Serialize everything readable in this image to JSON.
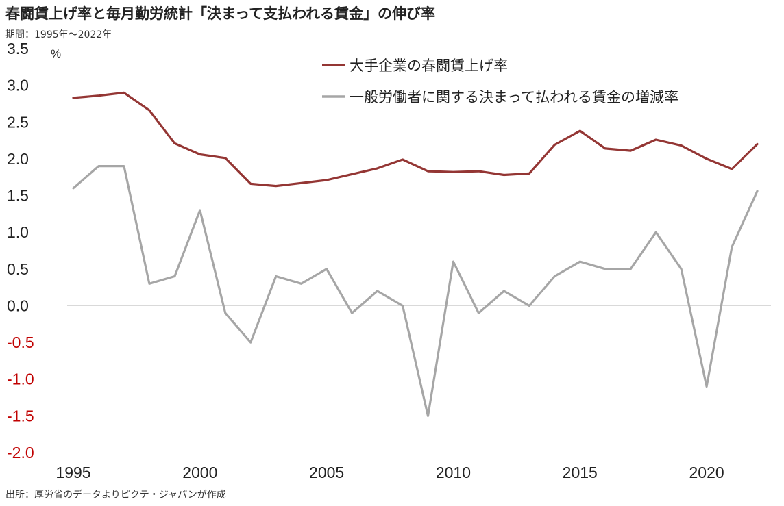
{
  "title": "春闘賃上げ率と毎月勤労統計「決まって支払われる賃金」の伸び率",
  "subtitle": "期間：1995年～2022年",
  "source": "出所：厚労省のデータよりピクテ・ジャパンが作成",
  "chart_data": {
    "type": "line",
    "unit": "%",
    "x": [
      1995,
      1996,
      1997,
      1998,
      1999,
      2000,
      2001,
      2002,
      2003,
      2004,
      2005,
      2006,
      2007,
      2008,
      2009,
      2010,
      2011,
      2012,
      2013,
      2014,
      2015,
      2016,
      2017,
      2018,
      2019,
      2020,
      2021,
      2022
    ],
    "xticks": [
      "1995",
      "2000",
      "2005",
      "2010",
      "2015",
      "2020"
    ],
    "xtick_values": [
      1995,
      2000,
      2005,
      2010,
      2015,
      2020
    ],
    "yticks": [
      "3.5",
      "3.0",
      "2.5",
      "2.0",
      "1.5",
      "1.0",
      "0.5",
      "0.0",
      "-0.5",
      "-1.0",
      "-1.5",
      "-2.0"
    ],
    "ytick_values": [
      3.5,
      3.0,
      2.5,
      2.0,
      1.5,
      1.0,
      0.5,
      0.0,
      -0.5,
      -1.0,
      -1.5,
      -2.0
    ],
    "ylim": [
      -2.0,
      3.5
    ],
    "xlim": [
      1995,
      2022
    ],
    "grid": false,
    "legend_position": "top-right",
    "zero_line": true,
    "colors": {
      "negative_tick": "#c00000",
      "positive_tick": "#222222"
    },
    "series": [
      {
        "name": "大手企業の春闘賃上げ率",
        "color": "#943634",
        "values": [
          2.83,
          2.86,
          2.9,
          2.66,
          2.21,
          2.06,
          2.01,
          1.66,
          1.63,
          1.67,
          1.71,
          1.79,
          1.87,
          1.99,
          1.83,
          1.82,
          1.83,
          1.78,
          1.8,
          2.19,
          2.38,
          2.14,
          2.11,
          2.26,
          2.18,
          2.0,
          1.86,
          2.2
        ]
      },
      {
        "name": "一般労働者に関する決まって払われる賃金の増減率",
        "color": "#a6a6a6",
        "values": [
          1.6,
          1.9,
          1.9,
          0.3,
          0.4,
          1.3,
          -0.1,
          -0.5,
          0.4,
          0.3,
          0.5,
          -0.1,
          0.2,
          0.0,
          -1.5,
          0.6,
          -0.1,
          0.2,
          0.0,
          0.4,
          0.6,
          0.5,
          0.5,
          1.0,
          0.5,
          -1.1,
          0.8,
          1.56
        ]
      }
    ]
  }
}
